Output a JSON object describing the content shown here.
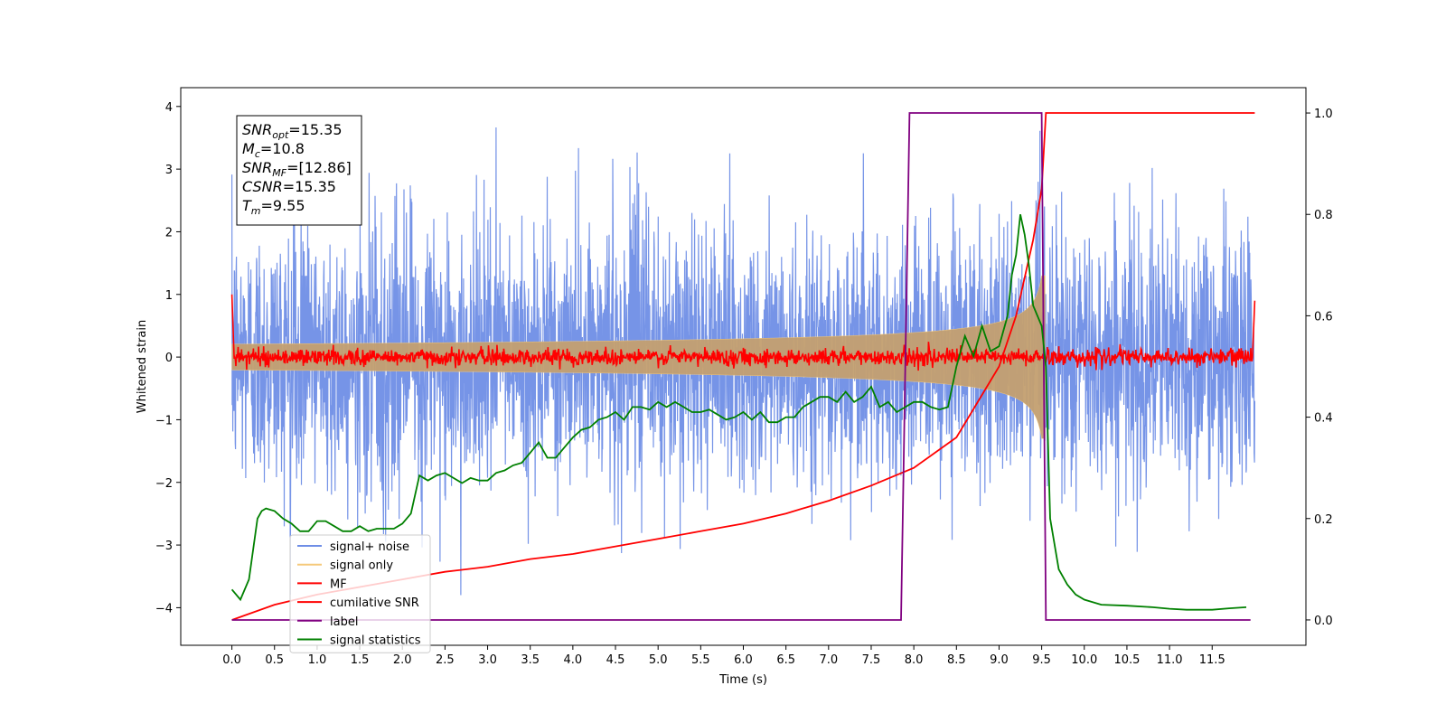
{
  "chart_data": {
    "type": "line",
    "xlabel": "Time (s)",
    "ylabel": "Whitened strain",
    "xlim": [
      -0.6,
      12.6
    ],
    "ylim": [
      -4.6,
      4.3
    ],
    "y2lim": [
      -0.05,
      1.05
    ],
    "x_ticks": [
      0.0,
      0.5,
      1.0,
      1.5,
      2.0,
      2.5,
      3.0,
      3.5,
      4.0,
      4.5,
      5.0,
      5.5,
      6.0,
      6.5,
      7.0,
      7.5,
      8.0,
      8.5,
      9.0,
      9.5,
      10.0,
      10.5,
      11.0,
      11.5
    ],
    "x_tick_labels": [
      "0.0",
      "0.5",
      "1.0",
      "1.5",
      "2.0",
      "2.5",
      "3.0",
      "3.5",
      "4.0",
      "4.5",
      "5.0",
      "5.5",
      "6.0",
      "6.5",
      "7.0",
      "7.5",
      "8.0",
      "8.5",
      "9.0",
      "9.5",
      "10.0",
      "10.5",
      "11.0",
      "11.5"
    ],
    "y_ticks": [
      -4,
      -3,
      -2,
      -1,
      0,
      1,
      2,
      3,
      4
    ],
    "y_tick_labels": [
      "−4",
      "−3",
      "−2",
      "−1",
      "0",
      "1",
      "2",
      "3",
      "4"
    ],
    "y2_ticks": [
      0.0,
      0.2,
      0.4,
      0.6,
      0.8,
      1.0
    ],
    "y2_tick_labels": [
      "0.0",
      "0.2",
      "0.4",
      "0.6",
      "0.8",
      "1.0"
    ],
    "grid": false,
    "legend_position": "lower-left",
    "legend": [
      {
        "label": "signal+ noise",
        "color": "#6f8ee6"
      },
      {
        "label": "signal only",
        "color": "#f5c97a"
      },
      {
        "label": "MF",
        "color": "#ff0000"
      },
      {
        "label": "cumilative SNR",
        "color": "#ff0000"
      },
      {
        "label": "label",
        "color": "#800080"
      },
      {
        "label": "signal statistics",
        "color": "#008000"
      }
    ],
    "annotation_lines": [
      {
        "base": "SNR",
        "sub": "opt",
        "value": "=15.35"
      },
      {
        "base": "M",
        "sub": "c",
        "value": "=10.8"
      },
      {
        "base": "SNR",
        "sub": "MF",
        "value": "=[12.86]"
      },
      {
        "base": "CSNR",
        "sub": "",
        "value": "=15.35"
      },
      {
        "base": "T",
        "sub": "m",
        "value": "=9.55"
      }
    ],
    "series": [
      {
        "name": "signal+ noise",
        "axis": "left",
        "color": "#6f8ee6",
        "description_range": [
          -4.15,
          3.9
        ],
        "t_range": [
          0.0,
          12.0
        ]
      },
      {
        "name": "signal only",
        "axis": "left",
        "color": "#c4a070",
        "chirp_end_time": 9.55,
        "peak_amplitude": 1.3
      },
      {
        "name": "MF",
        "axis": "left",
        "color": "#ff0000",
        "baseline": 0.0,
        "noise_amplitude": 0.15,
        "edge_values": [
          1.0,
          0.9
        ]
      },
      {
        "name": "cumilative SNR",
        "axis": "right",
        "color": "#ff0000",
        "x": [
          0.0,
          0.5,
          1.0,
          1.5,
          2.0,
          2.5,
          3.0,
          3.5,
          4.0,
          4.5,
          5.0,
          5.5,
          6.0,
          6.5,
          7.0,
          7.5,
          8.0,
          8.5,
          9.0,
          9.2,
          9.4,
          9.5,
          9.55,
          12.0
        ],
        "values": [
          0.0,
          0.03,
          0.05,
          0.065,
          0.08,
          0.095,
          0.105,
          0.12,
          0.13,
          0.145,
          0.16,
          0.175,
          0.19,
          0.21,
          0.235,
          0.265,
          0.3,
          0.36,
          0.5,
          0.6,
          0.75,
          0.85,
          1.0,
          1.0
        ]
      },
      {
        "name": "label",
        "axis": "right",
        "color": "#800080",
        "x": [
          0.0,
          7.85,
          7.95,
          9.5,
          9.55,
          11.95
        ],
        "values": [
          0.0,
          0.0,
          1.0,
          1.0,
          0.0,
          0.0
        ]
      },
      {
        "name": "signal statistics",
        "axis": "right",
        "color": "#008000",
        "x": [
          0.0,
          0.1,
          0.2,
          0.3,
          0.35,
          0.4,
          0.5,
          0.6,
          0.7,
          0.8,
          0.9,
          1.0,
          1.1,
          1.2,
          1.3,
          1.4,
          1.5,
          1.6,
          1.7,
          1.8,
          1.9,
          2.0,
          2.1,
          2.2,
          2.3,
          2.4,
          2.5,
          2.6,
          2.7,
          2.8,
          2.9,
          3.0,
          3.1,
          3.2,
          3.3,
          3.4,
          3.5,
          3.6,
          3.7,
          3.8,
          3.9,
          4.0,
          4.1,
          4.2,
          4.3,
          4.4,
          4.5,
          4.6,
          4.7,
          4.8,
          4.9,
          5.0,
          5.1,
          5.2,
          5.3,
          5.4,
          5.5,
          5.6,
          5.7,
          5.8,
          5.9,
          6.0,
          6.1,
          6.2,
          6.3,
          6.4,
          6.5,
          6.6,
          6.7,
          6.8,
          6.9,
          7.0,
          7.1,
          7.2,
          7.3,
          7.4,
          7.5,
          7.6,
          7.7,
          7.8,
          7.9,
          8.0,
          8.1,
          8.2,
          8.3,
          8.4,
          8.5,
          8.6,
          8.7,
          8.8,
          8.9,
          9.0,
          9.1,
          9.15,
          9.2,
          9.25,
          9.3,
          9.35,
          9.4,
          9.45,
          9.5,
          9.55,
          9.6,
          9.7,
          9.8,
          9.9,
          10.0,
          10.2,
          10.5,
          10.8,
          11.0,
          11.2,
          11.5,
          11.7,
          11.9
        ],
        "values": [
          0.06,
          0.04,
          0.08,
          0.2,
          0.215,
          0.22,
          0.215,
          0.2,
          0.19,
          0.175,
          0.175,
          0.195,
          0.195,
          0.185,
          0.175,
          0.175,
          0.185,
          0.175,
          0.18,
          0.18,
          0.18,
          0.19,
          0.21,
          0.285,
          0.275,
          0.285,
          0.29,
          0.28,
          0.27,
          0.28,
          0.275,
          0.275,
          0.29,
          0.295,
          0.305,
          0.31,
          0.33,
          0.35,
          0.32,
          0.32,
          0.34,
          0.36,
          0.375,
          0.38,
          0.395,
          0.4,
          0.41,
          0.395,
          0.42,
          0.42,
          0.415,
          0.43,
          0.42,
          0.43,
          0.42,
          0.41,
          0.41,
          0.415,
          0.405,
          0.395,
          0.4,
          0.41,
          0.395,
          0.41,
          0.39,
          0.39,
          0.4,
          0.4,
          0.42,
          0.43,
          0.44,
          0.44,
          0.43,
          0.45,
          0.43,
          0.44,
          0.46,
          0.42,
          0.43,
          0.41,
          0.42,
          0.43,
          0.43,
          0.42,
          0.415,
          0.42,
          0.5,
          0.56,
          0.52,
          0.58,
          0.53,
          0.54,
          0.6,
          0.68,
          0.72,
          0.8,
          0.76,
          0.7,
          0.62,
          0.6,
          0.58,
          0.5,
          0.2,
          0.1,
          0.07,
          0.05,
          0.04,
          0.03,
          0.028,
          0.025,
          0.022,
          0.02,
          0.02,
          0.023,
          0.025
        ]
      }
    ]
  }
}
